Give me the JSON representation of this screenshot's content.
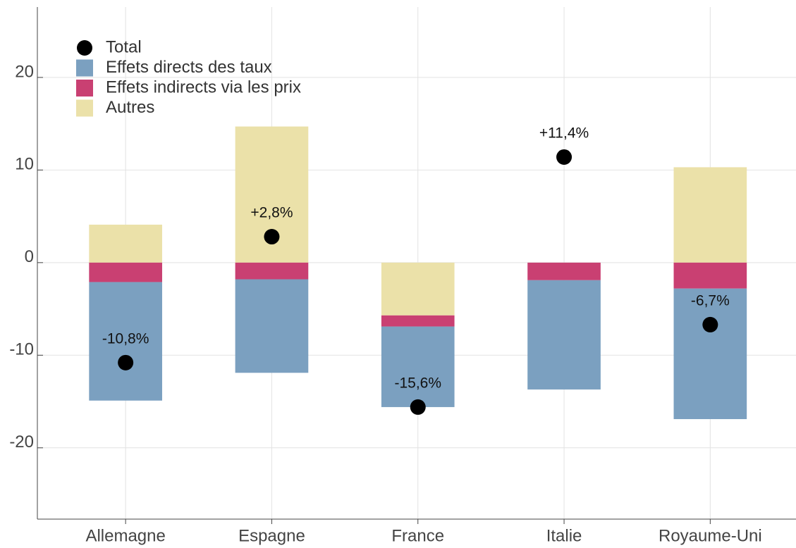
{
  "chart_data": {
    "type": "bar",
    "stacked": true,
    "categories": [
      "Allemagne",
      "Espagne",
      "France",
      "Italie",
      "Royaume-Uni"
    ],
    "series": [
      {
        "name": "Effets directs des taux",
        "color": "#7ba0c0",
        "values": [
          -12.8,
          -10.1,
          -8.7,
          -11.8,
          -14.1
        ]
      },
      {
        "name": "Effets indirects via les prix",
        "color": "#c94072",
        "values": [
          -2.1,
          -1.8,
          -1.2,
          -1.9,
          -2.8
        ]
      },
      {
        "name": "Autres",
        "color": "#ebe1a9",
        "values": [
          4.1,
          14.7,
          -5.7,
          null,
          10.3
        ]
      },
      {
        "name": "Total",
        "type": "scatter",
        "color": "#000000",
        "values": [
          -10.8,
          2.8,
          -15.6,
          11.4,
          -6.7
        ],
        "value_labels": [
          "-10,8%",
          "+2,8%",
          "-15,6%",
          "+11,4%",
          "-6,7%"
        ]
      }
    ],
    "ylim": [
      -27.7,
      27.6
    ],
    "yticks": [
      -20,
      -10,
      0,
      10,
      20
    ],
    "grid": true,
    "legend": "top-left"
  }
}
